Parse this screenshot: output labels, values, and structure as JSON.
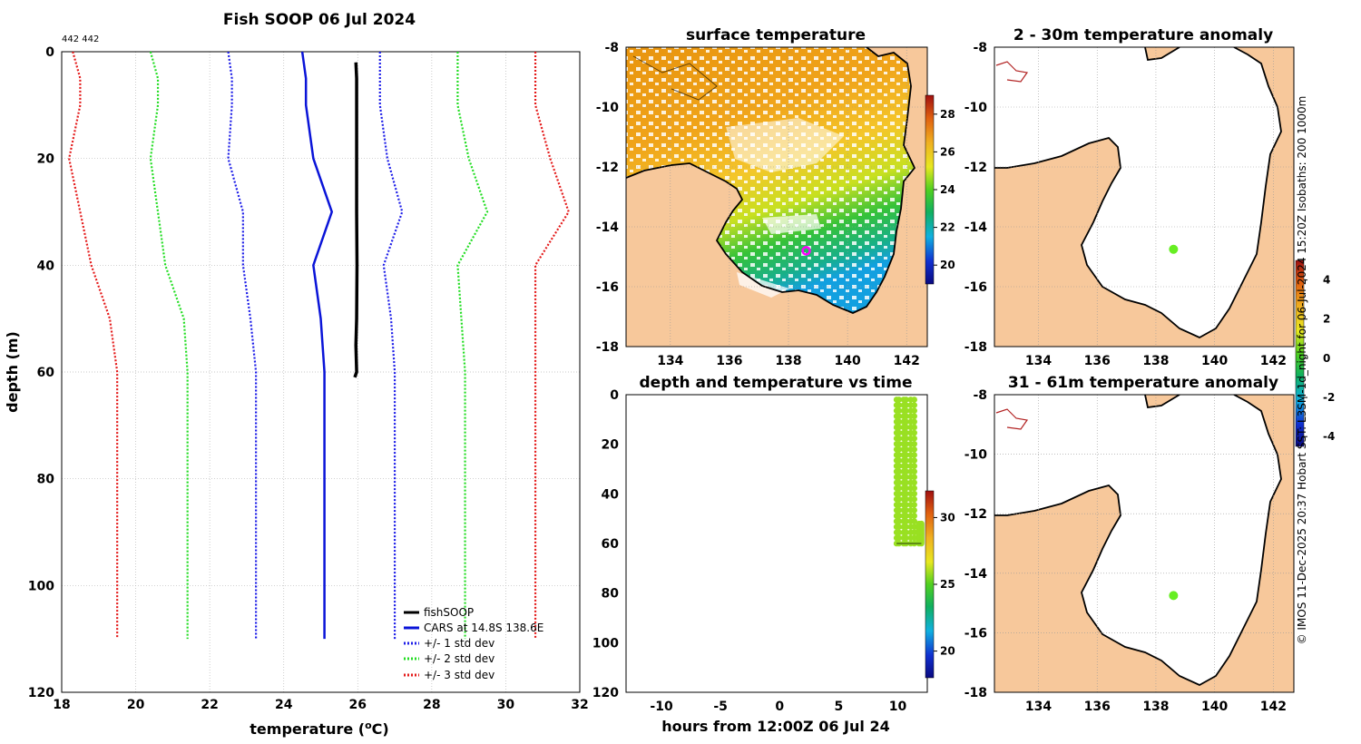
{
  "colors": {
    "land": "#f7c89b",
    "sea_missing": "#ffffff",
    "grid": "#b8b8b8",
    "coast": "#000000",
    "fishsoop": "#000000",
    "cars": "#0a14d8",
    "std1": "#1d1de8",
    "std2": "#22dd22",
    "std3": "#e41a1a",
    "marker": "#ff00ff",
    "anomaly_point": "#66ee22",
    "time_points": "#99e022",
    "river": "#b22222"
  },
  "profile": {
    "title": "Fish SOOP 06 Jul 2024",
    "id_text": "442 442",
    "xlabel": "temperature (",
    "xlabel_sup": "o",
    "xlabel_tail": "C)",
    "ylabel": "depth (m)",
    "xticks": [
      "18",
      "20",
      "22",
      "24",
      "26",
      "28",
      "30",
      "32"
    ],
    "yticks": [
      "0",
      "20",
      "40",
      "60",
      "80",
      "100",
      "120"
    ],
    "legend": {
      "fishsoop": "fishSOOP",
      "cars": "CARS at 14.8S 138.6E",
      "std1": "+/- 1 std dev",
      "std2": "+/- 2 std dev",
      "std3": "+/- 3 std dev"
    }
  },
  "sst_map": {
    "title": "surface temperature",
    "xticks": [
      "134",
      "136",
      "138",
      "140",
      "142"
    ],
    "yticks": [
      "-8",
      "-10",
      "-12",
      "-14",
      "-16",
      "-18"
    ],
    "colorbar_ticks": [
      "28",
      "26",
      "24",
      "22",
      "20"
    ]
  },
  "anom_top": {
    "title": "2 - 30m temperature anomaly",
    "xticks": [
      "134",
      "136",
      "138",
      "140",
      "142"
    ],
    "yticks": [
      "-8",
      "-10",
      "-12",
      "-14",
      "-16",
      "-18"
    ]
  },
  "anom_bottom": {
    "title": "31 - 61m temperature anomaly",
    "xticks": [
      "134",
      "136",
      "138",
      "140",
      "142"
    ],
    "yticks": [
      "-8",
      "-10",
      "-12",
      "-14",
      "-16",
      "-18"
    ]
  },
  "anomaly_colorbar_ticks": [
    "4",
    "2",
    "0",
    "-2",
    "-4"
  ],
  "time_plot": {
    "title": "depth and temperature vs time",
    "xlabel": "hours from 12:00Z 06 Jul 24",
    "xticks": [
      "-10",
      "-5",
      "0",
      "5",
      "10"
    ],
    "yticks": [
      "0",
      "20",
      "40",
      "60",
      "80",
      "100",
      "120"
    ],
    "colorbar_ticks": [
      "30",
      "25",
      "20"
    ]
  },
  "credit": "© IMOS 11-Dec-2025 20:37 Hobart SST: L3SM-1d_night for 06-Jul-2024 15:20Z Isobaths: 200  1000m",
  "chart_data": [
    {
      "type": "line",
      "title": "Fish SOOP 06 Jul 2024",
      "xlabel": "temperature (oC)",
      "ylabel": "depth (m)",
      "xlim": [
        18,
        32
      ],
      "ylim": [
        120,
        0
      ],
      "grid": true,
      "legend_position": "bottom-right",
      "series": [
        {
          "name": "fishSOOP",
          "style": "solid",
          "depth": [
            2,
            5,
            10,
            20,
            30,
            40,
            50,
            55,
            60,
            61
          ],
          "temp": [
            25.95,
            25.97,
            25.97,
            25.97,
            25.97,
            25.98,
            25.97,
            25.95,
            25.97,
            25.92
          ]
        },
        {
          "name": "CARS at 14.8S 138.6E",
          "style": "solid",
          "depth": [
            0,
            5,
            10,
            20,
            30,
            40,
            50,
            60,
            110
          ],
          "temp": [
            24.5,
            24.6,
            24.6,
            24.8,
            25.3,
            24.8,
            25.0,
            25.1,
            25.1
          ]
        },
        {
          "name": "+/- 1 std dev",
          "style": "dotted",
          "depth": [
            0,
            5,
            10,
            20,
            30,
            40,
            50,
            60,
            110
          ],
          "temp": [
            22.5,
            22.6,
            22.6,
            22.5,
            22.9,
            22.9,
            23.1,
            23.25,
            23.25
          ]
        },
        {
          "name": "+/- 1 std dev",
          "style": "dotted",
          "depth": [
            0,
            5,
            10,
            20,
            30,
            40,
            50,
            60,
            110
          ],
          "temp": [
            26.6,
            26.6,
            26.6,
            26.8,
            27.2,
            26.7,
            26.9,
            27.0,
            27.0
          ]
        },
        {
          "name": "+/- 2 std dev",
          "style": "dotted",
          "depth": [
            0,
            5,
            10,
            20,
            30,
            40,
            50,
            60,
            110
          ],
          "temp": [
            20.4,
            20.6,
            20.6,
            20.4,
            20.6,
            20.8,
            21.3,
            21.4,
            21.4
          ]
        },
        {
          "name": "+/- 2 std dev",
          "style": "dotted",
          "depth": [
            0,
            5,
            10,
            20,
            30,
            40,
            50,
            60,
            110
          ],
          "temp": [
            28.7,
            28.7,
            28.7,
            29.0,
            29.5,
            28.7,
            28.8,
            28.9,
            28.9
          ]
        },
        {
          "name": "+/- 3 std dev",
          "style": "dotted",
          "depth": [
            0,
            5,
            10,
            20,
            30,
            40,
            50,
            60,
            110
          ],
          "temp": [
            18.3,
            18.5,
            18.5,
            18.2,
            18.5,
            18.8,
            19.3,
            19.5,
            19.5
          ]
        },
        {
          "name": "+/- 3 std dev",
          "style": "dotted",
          "depth": [
            0,
            5,
            10,
            20,
            30,
            40,
            50,
            60,
            110
          ],
          "temp": [
            30.8,
            30.8,
            30.8,
            31.2,
            31.7,
            30.8,
            30.8,
            30.8,
            30.8
          ]
        }
      ]
    },
    {
      "type": "heatmap",
      "title": "surface temperature",
      "xlim": [
        132.5,
        142.7
      ],
      "ylim": [
        -18,
        -8
      ],
      "colorbar_range": [
        19,
        29
      ],
      "marker": {
        "lon": 138.6,
        "lat": -14.8
      },
      "regions": [
        {
          "area": "north",
          "temp": 27.2
        },
        {
          "area": "central gulf",
          "temp": 26.0
        },
        {
          "area": "south-central gulf",
          "temp": 24.5
        },
        {
          "area": "southern gulf",
          "temp": 22.5
        },
        {
          "area": "south-east corner",
          "temp": 21.0
        }
      ]
    },
    {
      "type": "scatter",
      "title": "2 - 30m temperature anomaly",
      "xlim": [
        132.5,
        142.7
      ],
      "ylim": [
        -18,
        -8
      ],
      "colorbar_range": [
        -4.5,
        5
      ],
      "points": [
        {
          "lon": 138.6,
          "lat": -14.75,
          "anomaly": 0.8
        }
      ]
    },
    {
      "type": "scatter",
      "title": "31 - 61m temperature anomaly",
      "xlim": [
        132.5,
        142.7
      ],
      "ylim": [
        -18,
        -8
      ],
      "colorbar_range": [
        -4.5,
        5
      ],
      "points": [
        {
          "lon": 138.6,
          "lat": -14.75,
          "anomaly": 0.8
        }
      ]
    },
    {
      "type": "scatter",
      "title": "depth and temperature vs time",
      "xlabel": "hours from 12:00Z 06 Jul 24",
      "xlim": [
        -13,
        12.5
      ],
      "ylim": [
        120,
        0
      ],
      "colorbar_range": [
        18,
        32
      ],
      "temp_colour_value": 26,
      "casts": [
        {
          "t0": 9.9,
          "t1": 10.1,
          "depth_min": 2,
          "depth_max": 60
        },
        {
          "t0": 10.5,
          "t1": 10.7,
          "depth_min": 2,
          "depth_max": 60
        },
        {
          "t0": 11.1,
          "t1": 11.4,
          "depth_min": 2,
          "depth_max": 60
        },
        {
          "t0": 11.8,
          "t1": 12.0,
          "depth_min": 52,
          "depth_max": 60
        }
      ]
    }
  ]
}
